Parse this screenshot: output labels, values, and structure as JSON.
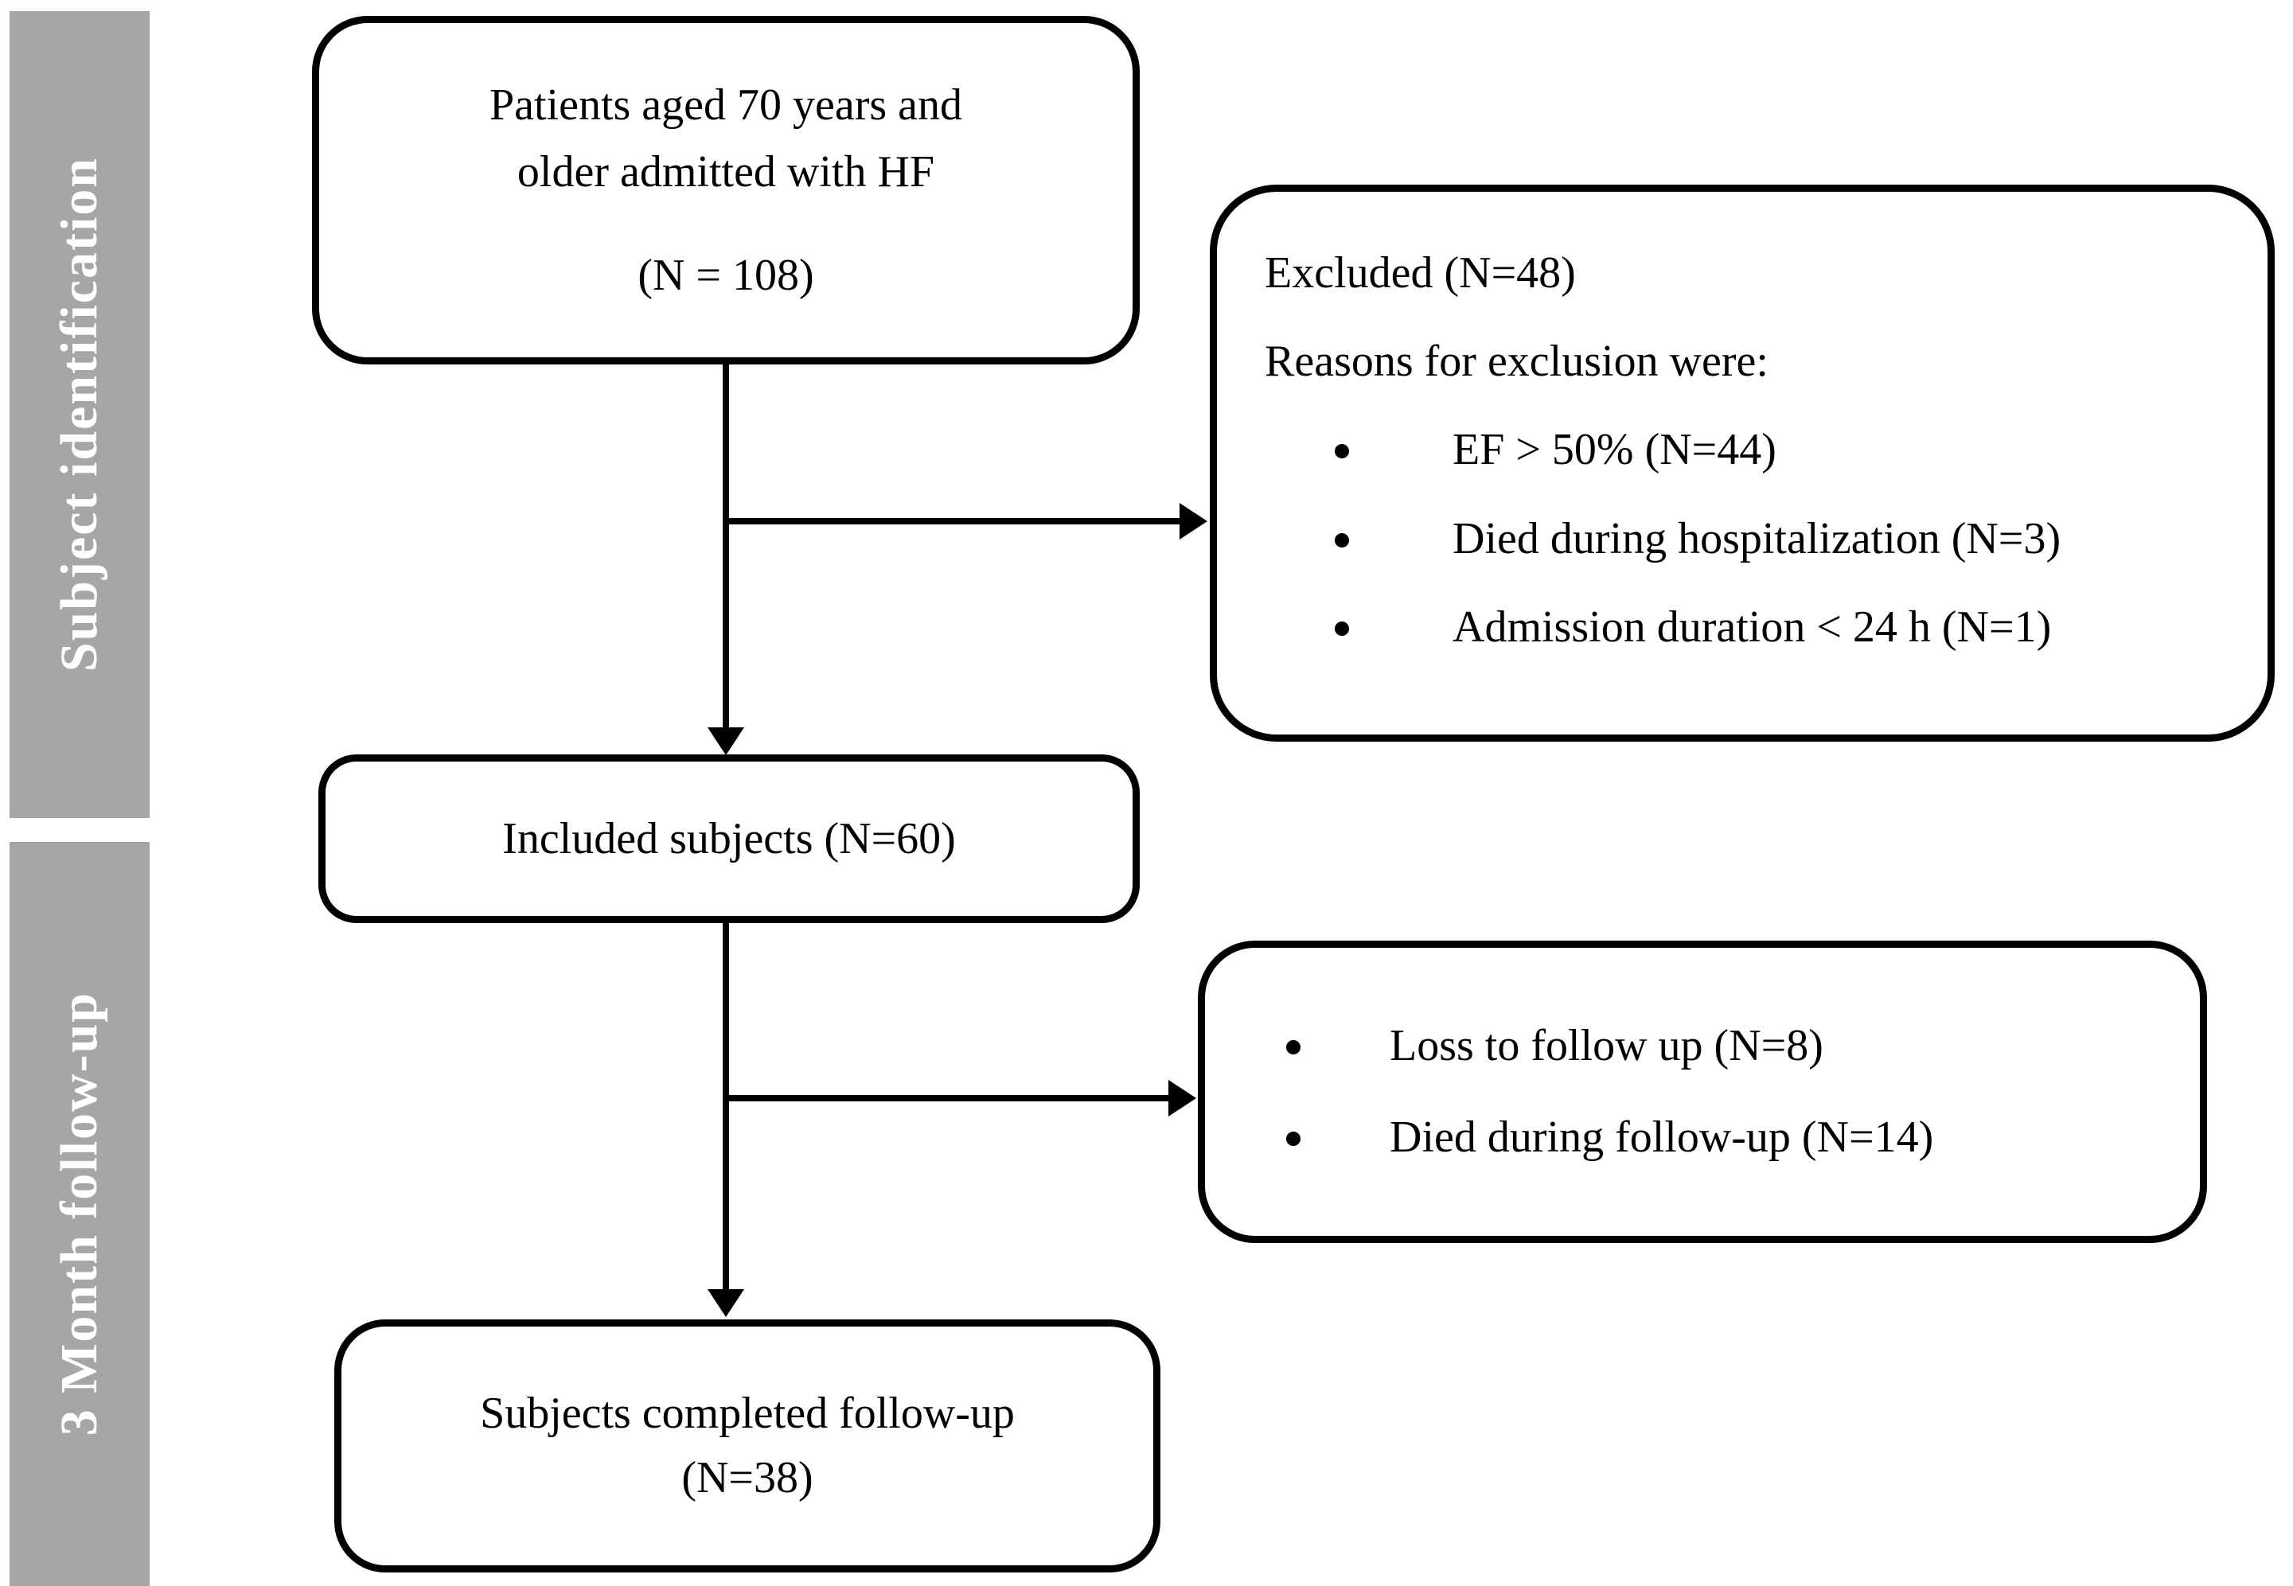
{
  "diagram": {
    "background": "#ffffff",
    "line_color": "#000000"
  },
  "sidebar": {
    "color": "#a6a6a6",
    "text_color": "#ffffff",
    "phases": {
      "identification": "Subject identification",
      "followup": "3 Month follow-up"
    }
  },
  "boxes": {
    "population": {
      "line1": "Patients aged 70 years and",
      "line2": "older admitted  with HF",
      "n": "(N = 108)"
    },
    "excluded": {
      "title": "Excluded (N=48)",
      "subtitle": "Reasons for exclusion were:",
      "bullets": [
        "EF > 50% (N=44)",
        "Died during hospitalization (N=3)",
        "Admission duration < 24 h (N=1)"
      ]
    },
    "included": {
      "label": "Included subjects (N=60)"
    },
    "followup_losses": {
      "bullets": [
        "Loss to follow up (N=8)",
        "Died during follow-up (N=14)"
      ]
    },
    "completed": {
      "line1": "Subjects completed follow-up",
      "line2": "(N=38)"
    }
  }
}
